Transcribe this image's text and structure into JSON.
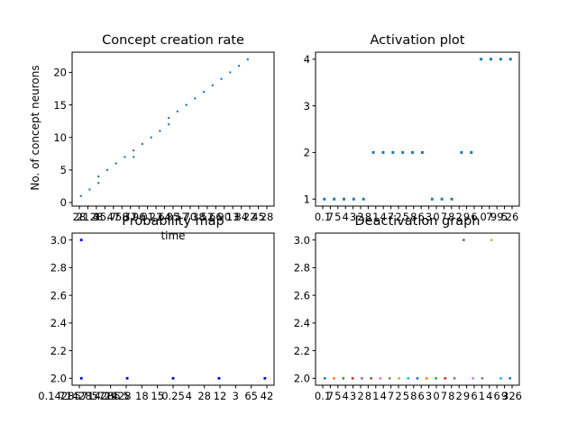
{
  "figure": {
    "background": "#ffffff"
  },
  "chart_data": [
    {
      "id": "concept",
      "type": "scatter",
      "title": "Concept creation rate",
      "xlabel": "time",
      "ylabel": "No. of concept neurons",
      "xlim": [
        0,
        23
      ],
      "ylim": [
        -0.55,
        23.1
      ],
      "yticks": [
        0,
        5,
        10,
        15,
        20
      ],
      "xtick_labels": [
        "28",
        "21.4",
        "28",
        "35.7",
        "47",
        "58",
        "77",
        "96",
        "01",
        "22",
        "64",
        "85",
        "17",
        "70",
        "38",
        "52",
        "66",
        "90",
        "13",
        "84",
        "22",
        "45",
        "28"
      ],
      "color": "#1f77b4",
      "x": [
        1,
        2,
        3,
        3,
        4,
        5,
        6,
        7,
        7,
        8,
        9,
        10,
        11,
        11,
        12,
        13,
        14,
        15,
        16,
        17,
        18,
        19,
        20
      ],
      "y": [
        1,
        2,
        3,
        4,
        5,
        6,
        7,
        8,
        7,
        9,
        10,
        11,
        12,
        13,
        14,
        15,
        16,
        17,
        18,
        19,
        20,
        21,
        22
      ]
    },
    {
      "id": "activation",
      "type": "scatter",
      "title": "Activation plot",
      "xlabel": "",
      "ylabel": "",
      "xlim": [
        -0.9,
        19.9
      ],
      "ylim": [
        0.85,
        4.15
      ],
      "yticks": [
        1,
        2,
        3,
        4
      ],
      "xtick_labels": [
        "0.1",
        "7",
        "5",
        "4",
        "3",
        "2",
        "8",
        "1",
        "4",
        "7",
        "2",
        "5",
        "8",
        "6",
        "3",
        "0",
        "7",
        "8",
        "2",
        "9",
        "6",
        ".0",
        "7",
        "99",
        "5",
        "26"
      ],
      "color": "#1f77b4",
      "x": [
        0,
        1,
        2,
        3,
        4,
        5,
        6,
        7,
        8,
        9,
        10,
        11,
        12,
        13,
        14,
        15,
        16,
        17,
        18,
        19
      ],
      "y": [
        1,
        1,
        1,
        1,
        1,
        2,
        2,
        2,
        2,
        2,
        2,
        1,
        1,
        1,
        2,
        2,
        4,
        4,
        4,
        4
      ]
    },
    {
      "id": "probability",
      "type": "scatter",
      "title": "Probability map",
      "xlabel": "",
      "ylabel": "",
      "xlim": [
        -0.2,
        4.2
      ],
      "ylim": [
        1.95,
        3.05
      ],
      "yticks": [
        2.0,
        2.2,
        2.4,
        2.6,
        2.8,
        3.0
      ],
      "xtick_labels": [
        "0.14285714285",
        "71428571428",
        "29",
        "5",
        "18",
        "15",
        "0.25",
        "4",
        "28",
        "12",
        "3",
        "65",
        "42"
      ],
      "color": "#0000ff",
      "x": [
        0,
        0,
        1,
        2,
        3,
        4
      ],
      "y": [
        3.0,
        2.0,
        2.0,
        2.0,
        2.0,
        2.0
      ]
    },
    {
      "id": "deactivation",
      "type": "scatter",
      "title": "Deactivation graph",
      "xlabel": "",
      "ylabel": "",
      "xlim": [
        -1,
        21
      ],
      "ylim": [
        1.95,
        3.05
      ],
      "yticks": [
        2.0,
        2.2,
        2.4,
        2.6,
        2.8,
        3.0
      ],
      "xtick_labels": [
        "0.1",
        "7",
        "5",
        "4",
        "3",
        "2",
        "8",
        "1",
        "4",
        "7",
        "2",
        "5",
        "8",
        "6",
        "3",
        "0",
        "7",
        "8",
        "2",
        "9",
        "6",
        "1",
        "4",
        "6",
        "9",
        "326"
      ],
      "colors": [
        "#1f77b4",
        "#ff7f0e",
        "#2ca02c",
        "#d62728",
        "#9467bd",
        "#8c564b",
        "#e377c2",
        "#7f7f7f",
        "#bcbd22",
        "#17becf"
      ],
      "x": [
        0,
        1,
        2,
        3,
        4,
        5,
        6,
        7,
        8,
        9,
        10,
        11,
        12,
        13,
        14,
        15,
        16,
        17,
        18,
        19,
        20
      ],
      "y": [
        2,
        2,
        2,
        2,
        2,
        2,
        2,
        2,
        2,
        2,
        2,
        2,
        2,
        2,
        2,
        3,
        2,
        2,
        3,
        2,
        2
      ]
    }
  ]
}
